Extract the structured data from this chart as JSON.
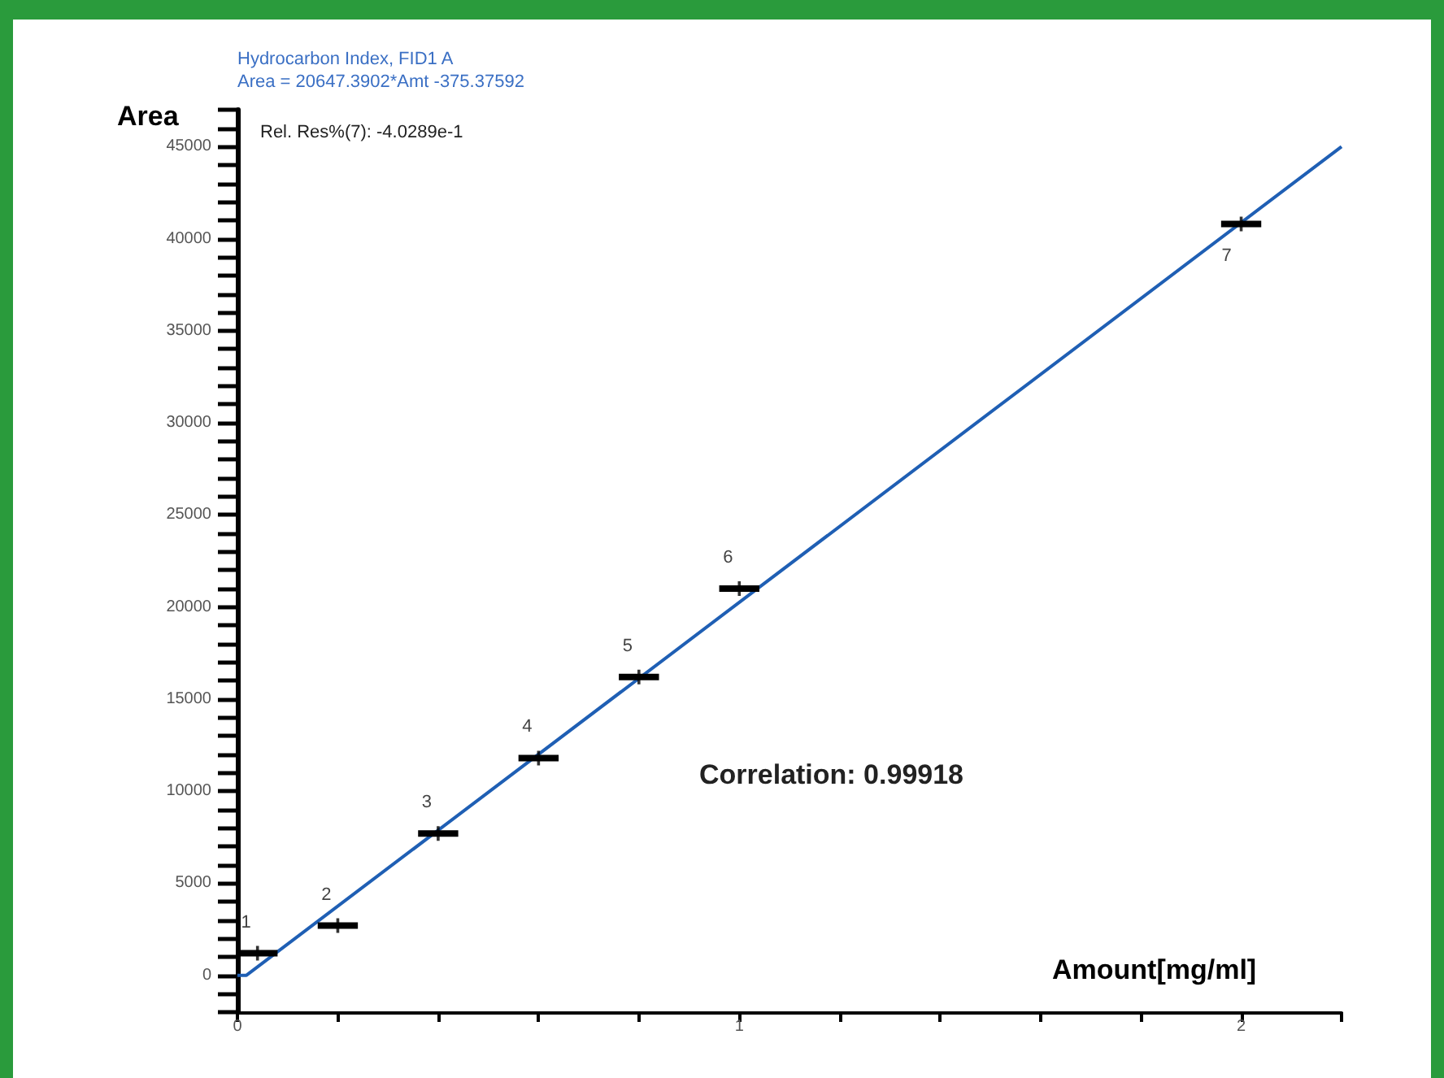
{
  "chart_data": {
    "type": "scatter",
    "title": "Hydrocarbon Index, FID1 A",
    "subtitle": "Area = 20647.3902*Amt -375.37592",
    "xlabel": "Amount[mg/ml]",
    "ylabel": "Area",
    "x": [
      0.04,
      0.2,
      0.4,
      0.6,
      0.8,
      1.0,
      2.0
    ],
    "series": [
      {
        "color": "#000000",
        "values": [
          1200,
          2700,
          7700,
          11800,
          16200,
          21000,
          40800
        ],
        "xerrors": [
          0.04,
          0.04,
          0.04,
          0.04,
          0.04,
          0.04,
          0.04
        ],
        "marker": "cross"
      },
      {
        "type": "line",
        "color": "#1f5fb4",
        "x": [
          0,
          0.018,
          2.2
        ],
        "values": [
          0,
          0,
          45000
        ]
      }
    ],
    "annotations": [
      "Rel. Res%(7): -4.0289e-1",
      "Correlation: 0.99918",
      {
        "text": "1",
        "x": 0.04,
        "y": 1200
      },
      {
        "text": "2",
        "x": 0.2,
        "y": 2700
      },
      {
        "text": "3",
        "x": 0.4,
        "y": 7700
      },
      {
        "text": "4",
        "x": 0.6,
        "y": 11800
      },
      {
        "text": "5",
        "x": 0.8,
        "y": 16200
      },
      {
        "text": "6",
        "x": 1.0,
        "y": 21000
      },
      {
        "text": "7",
        "x": 2.0,
        "y": 40800
      }
    ],
    "xlim": [
      0,
      2.2
    ],
    "ylim": [
      -2000,
      47000
    ],
    "xticks": [
      0,
      {
        "value": 0.2,
        "label": null
      },
      {
        "value": 0.4,
        "label": null
      },
      {
        "value": 0.6,
        "label": null
      },
      {
        "value": 0.8,
        "label": null
      },
      1,
      {
        "value": 1.2,
        "label": null
      },
      {
        "value": 1.4,
        "label": null
      },
      {
        "value": 1.6,
        "label": null
      },
      {
        "value": 1.8,
        "label": null
      },
      2,
      {
        "value": 2.2,
        "label": null
      }
    ],
    "yticks": [
      {
        "value": -2000,
        "label": null
      },
      {
        "value": -1000,
        "label": null
      },
      0,
      {
        "value": 1000,
        "label": null
      },
      {
        "value": 2000,
        "label": null
      },
      {
        "value": 3000,
        "label": null
      },
      {
        "value": 4000,
        "label": null
      },
      5000,
      {
        "value": 6000,
        "label": null
      },
      {
        "value": 7000,
        "label": null
      },
      {
        "value": 8000,
        "label": null
      },
      {
        "value": 9000,
        "label": null
      },
      10000,
      {
        "value": 11000,
        "label": null
      },
      {
        "value": 12000,
        "label": null
      },
      {
        "value": 13000,
        "label": null
      },
      {
        "value": 14000,
        "label": null
      },
      15000,
      {
        "value": 16000,
        "label": null
      },
      {
        "value": 17000,
        "label": null
      },
      {
        "value": 18000,
        "label": null
      },
      {
        "value": 19000,
        "label": null
      },
      20000,
      {
        "value": 21000,
        "label": null
      },
      {
        "value": 22000,
        "label": null
      },
      {
        "value": 23000,
        "label": null
      },
      {
        "value": 24000,
        "label": null
      },
      25000,
      {
        "value": 26000,
        "label": null
      },
      {
        "value": 27000,
        "label": null
      },
      {
        "value": 28000,
        "label": null
      },
      {
        "value": 29000,
        "label": null
      },
      30000,
      {
        "value": 31000,
        "label": null
      },
      {
        "value": 32000,
        "label": null
      },
      {
        "value": 33000,
        "label": null
      },
      {
        "value": 34000,
        "label": null
      },
      35000,
      {
        "value": 36000,
        "label": null
      },
      {
        "value": 37000,
        "label": null
      },
      {
        "value": 38000,
        "label": null
      },
      {
        "value": 39000,
        "label": null
      },
      40000,
      {
        "value": 41000,
        "label": null
      },
      {
        "value": 42000,
        "label": null
      },
      {
        "value": 43000,
        "label": null
      },
      {
        "value": 44000,
        "label": null
      },
      45000,
      {
        "value": 46000,
        "label": null
      },
      {
        "value": 47000,
        "label": null
      }
    ],
    "grid": false
  }
}
